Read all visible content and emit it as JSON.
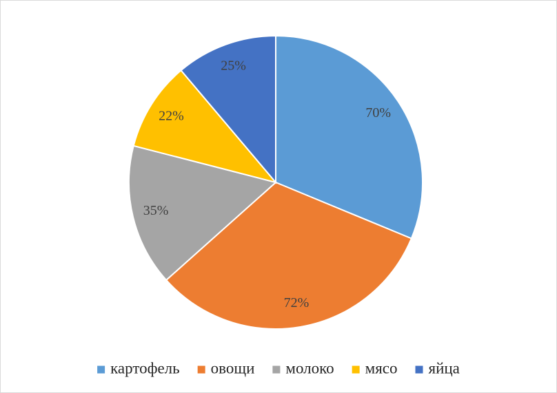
{
  "chart_data": {
    "type": "pie",
    "categories": [
      "картофель",
      "овощи",
      "молоко",
      "мясо",
      "яйца"
    ],
    "values": [
      70,
      72,
      35,
      22,
      25
    ],
    "value_labels": [
      "70%",
      "72%",
      "35%",
      "22%",
      "25%"
    ],
    "colors": [
      "#5b9bd5",
      "#ed7d31",
      "#a5a5a5",
      "#ffc000",
      "#4472c4"
    ],
    "legend": "bottom"
  }
}
